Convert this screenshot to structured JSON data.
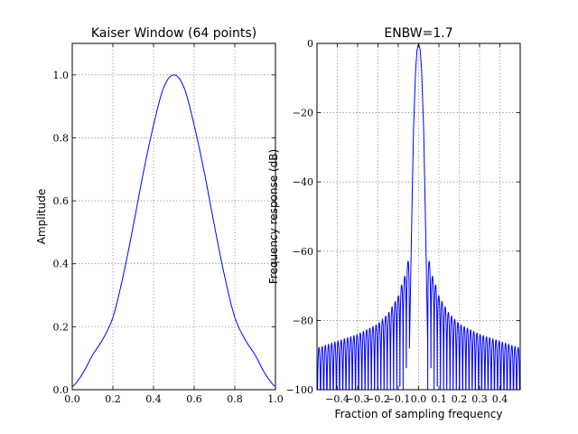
{
  "chart_data": [
    {
      "type": "line",
      "title": "Kaiser Window (64 points)",
      "xlabel": "",
      "ylabel": "Amplitude",
      "xlim": [
        0.0,
        1.0
      ],
      "ylim": [
        0.0,
        1.1
      ],
      "xticks": [
        0.0,
        0.2,
        0.4,
        0.6,
        0.8,
        1.0
      ],
      "xtick_labels": [
        "0.0",
        "0.2",
        "0.4",
        "0.6",
        "0.8",
        "1.0"
      ],
      "yticks": [
        0.0,
        0.2,
        0.4,
        0.6,
        0.8,
        1.0
      ],
      "ytick_labels": [
        "0.0",
        "0.2",
        "0.4",
        "0.6",
        "0.8",
        "1.0"
      ],
      "grid": true,
      "color": "#0000ff",
      "series": [
        {
          "x": [
            0.0,
            0.05,
            0.1,
            0.15,
            0.2,
            0.25,
            0.3,
            0.35,
            0.4,
            0.45,
            0.5,
            0.55,
            0.6,
            0.65,
            0.7,
            0.75,
            0.8,
            0.85,
            0.9,
            0.95,
            1.0
          ],
          "y": [
            0.01,
            0.05,
            0.11,
            0.16,
            0.23,
            0.36,
            0.52,
            0.69,
            0.84,
            0.96,
            1.0,
            0.96,
            0.84,
            0.69,
            0.52,
            0.36,
            0.23,
            0.16,
            0.11,
            0.05,
            0.01
          ]
        }
      ]
    },
    {
      "type": "line",
      "title": "ENBW=1.7",
      "xlabel": "Fraction of sampling frequency",
      "ylabel": "Frequency response (dB)",
      "xlim": [
        -0.5,
        0.5
      ],
      "ylim": [
        -100,
        0
      ],
      "xticks": [
        -0.4,
        -0.3,
        -0.2,
        -0.1,
        0.0,
        0.1,
        0.2,
        0.3,
        0.4
      ],
      "xtick_labels": [
        "−0.4",
        "−0.3",
        "−0.2",
        "−0.1",
        "0.0",
        "0.1",
        "0.2",
        "0.3",
        "0.4"
      ],
      "yticks": [
        0,
        -20,
        -40,
        -60,
        -80,
        -100
      ],
      "ytick_labels": [
        "0",
        "−20",
        "−40",
        "−60",
        "−80",
        "−100"
      ],
      "grid": true,
      "color": "#0000ff",
      "series": [
        {
          "mainlobe_x": [
            -0.045,
            -0.035,
            -0.025,
            -0.015,
            -0.008,
            0.0,
            0.008,
            0.015,
            0.025,
            0.035,
            0.045
          ],
          "mainlobe_y": [
            -88,
            -55,
            -25,
            -8,
            -2,
            0,
            -2,
            -8,
            -25,
            -55,
            -88
          ],
          "sidelobe_envelope_x": [
            0.045,
            0.05,
            0.06,
            0.08,
            0.1,
            0.15,
            0.2,
            0.3,
            0.4,
            0.5
          ],
          "sidelobe_envelope_y": [
            -61,
            -62,
            -66,
            -69,
            -73,
            -78,
            -81,
            -84,
            -86,
            -88
          ]
        }
      ]
    }
  ]
}
